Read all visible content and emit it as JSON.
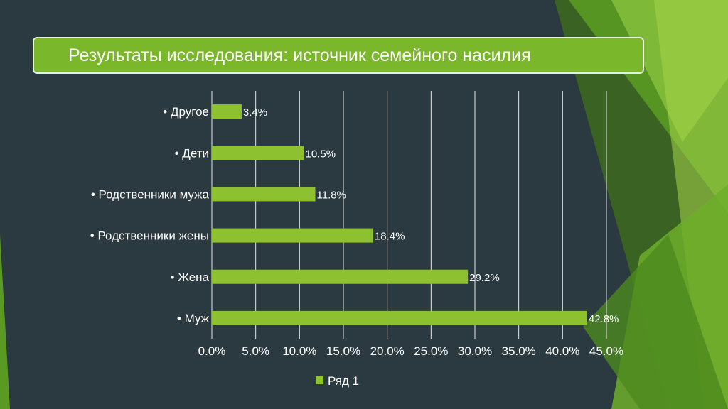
{
  "slide": {
    "title": "Результаты исследования: источник семейного насилия"
  },
  "colors": {
    "background": "#2a3a40",
    "bar": "#8dc12f",
    "title_fill": "#7ab72a",
    "text": "#ffffff",
    "grid": "#e6e6e6"
  },
  "chart_data": {
    "type": "bar",
    "orientation": "horizontal",
    "categories": [
      "• Муж",
      "• Жена",
      "• Родственники жены",
      "• Родственники мужа",
      "• Дети",
      "• Другое"
    ],
    "series": [
      {
        "name": "Ряд 1",
        "values": [
          42.8,
          29.2,
          18.4,
          11.8,
          10.5,
          3.4
        ],
        "labels": [
          "42.8%",
          "29.2%",
          "18.4%",
          "11.8%",
          "10.5%",
          "3.4%"
        ]
      }
    ],
    "xlim": [
      0,
      45
    ],
    "xticks": [
      "0.0%",
      "5.0%",
      "10.0%",
      "15.0%",
      "20.0%",
      "25.0%",
      "30.0%",
      "35.0%",
      "40.0%",
      "45.0%"
    ],
    "grid": true,
    "legend": "bottom"
  }
}
